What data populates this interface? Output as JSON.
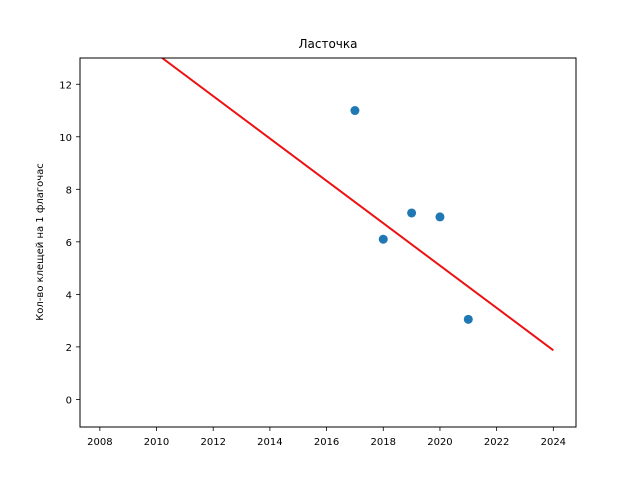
{
  "chart_data": {
    "type": "scatter",
    "title": "Ласточка",
    "xlabel": "",
    "ylabel": "Кол-во клещей на 1 флагочас",
    "xlim": [
      2007.3,
      2024.8
    ],
    "ylim": [
      -1.05,
      13.0
    ],
    "x_ticks": [
      2008,
      2010,
      2012,
      2014,
      2016,
      2018,
      2020,
      2022,
      2024
    ],
    "y_ticks": [
      0,
      2,
      4,
      6,
      8,
      10,
      12
    ],
    "grid": false,
    "series": [
      {
        "type": "scatter",
        "color": "#1f77b4",
        "points": [
          {
            "x": 2017,
            "y": 11.0
          },
          {
            "x": 2018,
            "y": 6.1
          },
          {
            "x": 2019,
            "y": 7.1
          },
          {
            "x": 2020,
            "y": 6.95
          },
          {
            "x": 2021,
            "y": 3.05
          }
        ]
      },
      {
        "type": "line",
        "color": "#ee1111",
        "points": [
          {
            "x": 2010.2,
            "y": 13.0
          },
          {
            "x": 2024.0,
            "y": 1.87
          }
        ]
      }
    ]
  }
}
